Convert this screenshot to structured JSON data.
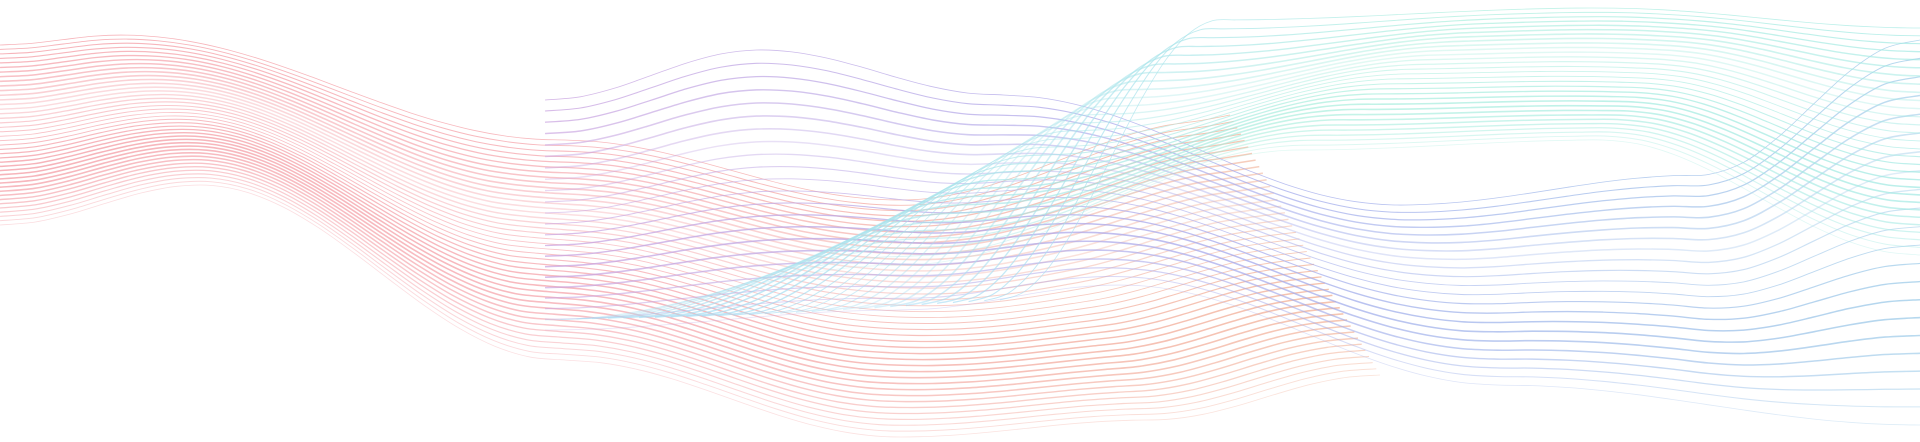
{
  "background": "#ffffff",
  "wave_families": [
    {
      "name": "red-waves",
      "line_count": 42,
      "colors": [
        "#f4a0a8",
        "#f6aab0",
        "#f2b49a"
      ],
      "opacity": 0.8
    },
    {
      "name": "violet-blue-waves",
      "line_count": 22,
      "colors": [
        "#caa4e0",
        "#a4a8ec",
        "#9ccbe8"
      ],
      "opacity": 0.75
    },
    {
      "name": "cyan-green-waves",
      "line_count": 30,
      "colors": [
        "#a6dcf4",
        "#a8eedc",
        "#9ee8e2"
      ],
      "opacity": 0.7
    }
  ]
}
